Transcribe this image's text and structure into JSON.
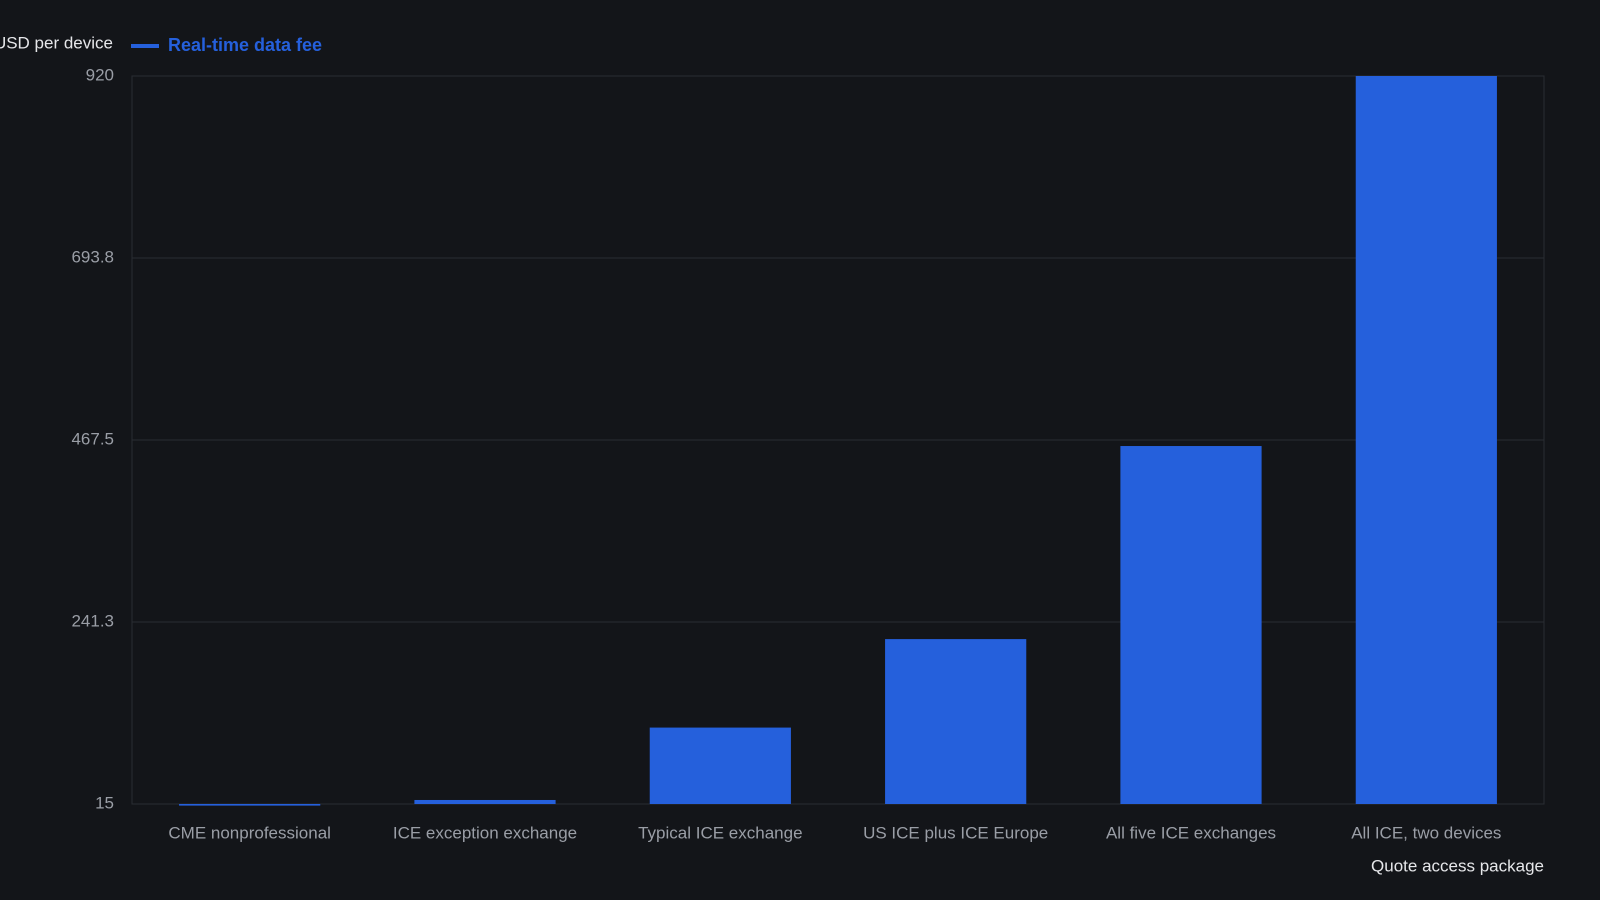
{
  "chart_data": {
    "type": "bar",
    "y_label": "USD per device",
    "x_label": "Quote access package",
    "categories": [
      "CME nonprofessional",
      "ICE exception exchange",
      "Typical ICE exchange",
      "US ICE plus ICE Europe",
      "All five ICE exchanges",
      "All ICE, two devices"
    ],
    "series": [
      {
        "name": "Real-time data fee",
        "color": "#2560dc",
        "values": [
          13,
          20,
          110,
          220,
          460,
          920
        ]
      }
    ],
    "ylim": [
      15,
      920
    ],
    "yticks": [
      15,
      241.3,
      467.5,
      693.8,
      920
    ],
    "grid": true
  }
}
